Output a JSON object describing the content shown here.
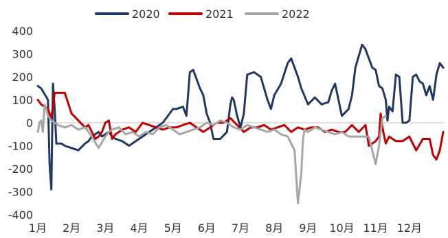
{
  "chart_data": {
    "type": "line",
    "title": "",
    "xlabel": "",
    "ylabel": "",
    "ylim": [
      -400,
      400
    ],
    "yticks": [
      400,
      300,
      200,
      100,
      0,
      -100,
      -200,
      -300,
      -400
    ],
    "xticks": [
      "1月",
      "2月",
      "3月",
      "4月",
      "5月",
      "6月",
      "7月",
      "8月",
      "9月",
      "10月",
      "11月",
      "12月"
    ],
    "xlim": [
      0,
      12
    ],
    "grid": false,
    "legend_position": "top",
    "series": [
      {
        "name": "2020",
        "color": "#1F3864",
        "x": [
          0.0,
          0.1,
          0.3,
          0.35,
          0.4,
          0.45,
          0.5,
          0.55,
          0.6,
          0.65,
          0.7,
          0.8,
          1.0,
          1.2,
          1.4,
          1.5,
          1.6,
          1.8,
          1.9,
          2.1,
          2.2,
          2.3,
          2.5,
          2.7,
          2.9,
          3.1,
          3.3,
          3.5,
          3.7,
          3.9,
          4.0,
          4.1,
          4.3,
          4.4,
          4.5,
          4.6,
          4.8,
          4.9,
          5.0,
          5.1,
          5.2,
          5.4,
          5.6,
          5.7,
          5.75,
          5.8,
          5.9,
          6.0,
          6.1,
          6.2,
          6.4,
          6.6,
          6.8,
          6.9,
          7.0,
          7.2,
          7.4,
          7.5,
          7.7,
          7.8,
          8.0,
          8.2,
          8.4,
          8.6,
          8.7,
          8.8,
          9.0,
          9.2,
          9.3,
          9.4,
          9.5,
          9.6,
          9.7,
          9.8,
          9.9,
          10.0,
          10.1,
          10.2,
          10.3,
          10.35,
          10.4,
          10.5,
          10.6,
          10.7,
          10.8,
          10.9,
          11.0,
          11.1,
          11.2,
          11.3,
          11.4,
          11.5,
          11.6,
          11.7,
          11.8,
          11.9,
          12.0
        ],
        "y": [
          160,
          150,
          100,
          -180,
          -290,
          170,
          60,
          -90,
          -90,
          -90,
          -90,
          -100,
          -110,
          -120,
          -90,
          -80,
          -60,
          -40,
          -60,
          -40,
          -60,
          -70,
          -80,
          -100,
          -80,
          -60,
          -40,
          -20,
          0,
          40,
          60,
          60,
          70,
          30,
          220,
          230,
          150,
          120,
          40,
          0,
          -70,
          -70,
          -40,
          80,
          110,
          100,
          30,
          -20,
          40,
          210,
          220,
          200,
          100,
          60,
          120,
          170,
          260,
          280,
          200,
          150,
          80,
          110,
          80,
          90,
          140,
          170,
          30,
          60,
          120,
          240,
          290,
          340,
          320,
          280,
          240,
          230,
          160,
          150,
          100,
          10,
          70,
          50,
          210,
          200,
          0,
          0,
          10,
          200,
          210,
          180,
          170,
          120,
          160,
          100,
          210,
          260,
          240
        ]
      },
      {
        "name": "2021",
        "color": "#C00000",
        "x": [
          0.0,
          0.1,
          0.2,
          0.3,
          0.4,
          0.5,
          0.6,
          0.7,
          0.8,
          1.0,
          1.2,
          1.4,
          1.5,
          1.6,
          1.7,
          1.8,
          1.9,
          2.0,
          2.1,
          2.2,
          2.3,
          2.5,
          2.7,
          2.9,
          3.1,
          3.3,
          3.5,
          3.7,
          3.9,
          4.1,
          4.3,
          4.5,
          4.7,
          4.9,
          5.1,
          5.3,
          5.5,
          5.7,
          5.9,
          6.1,
          6.3,
          6.5,
          6.7,
          6.9,
          7.1,
          7.3,
          7.5,
          7.7,
          7.9,
          8.1,
          8.3,
          8.5,
          8.7,
          8.9,
          9.1,
          9.3,
          9.5,
          9.7,
          9.8,
          9.9,
          10.0,
          10.1,
          10.15,
          10.2,
          10.3,
          10.4,
          10.6,
          10.8,
          11.0,
          11.2,
          11.4,
          11.6,
          11.7,
          11.8,
          11.9,
          12.0
        ],
        "y": [
          100,
          80,
          70,
          60,
          20,
          130,
          130,
          130,
          130,
          40,
          10,
          -20,
          -10,
          -40,
          -70,
          -60,
          -40,
          0,
          10,
          -70,
          -50,
          -30,
          -20,
          -40,
          0,
          -10,
          -20,
          -30,
          -20,
          -20,
          -10,
          0,
          -20,
          -40,
          -20,
          0,
          0,
          20,
          -10,
          -40,
          -20,
          -20,
          -10,
          -30,
          -20,
          -10,
          -40,
          -20,
          -30,
          -20,
          -20,
          -40,
          -30,
          -40,
          -40,
          -10,
          -40,
          -10,
          -100,
          -90,
          -80,
          -60,
          40,
          -20,
          -90,
          -60,
          -80,
          -80,
          -60,
          -120,
          -70,
          -70,
          -140,
          -160,
          -120,
          -40
        ]
      },
      {
        "name": "2022",
        "color": "#A6A6A6",
        "x": [
          0.0,
          0.05,
          0.1,
          0.15,
          0.2,
          0.25,
          0.3,
          0.35,
          0.4,
          0.5,
          0.6,
          0.8,
          1.0,
          1.2,
          1.4,
          1.6,
          1.8,
          2.0,
          2.1,
          2.2,
          2.4,
          2.6,
          2.8,
          3.0,
          3.2,
          3.4,
          3.6,
          3.8,
          4.0,
          4.2,
          4.4,
          4.6,
          4.8,
          5.0,
          5.2,
          5.4,
          5.6,
          5.8,
          6.0,
          6.2,
          6.4,
          6.6,
          6.8,
          7.0,
          7.2,
          7.4,
          7.6,
          7.7,
          7.8,
          7.85,
          7.9,
          8.0,
          8.2,
          8.4,
          8.6,
          8.8,
          9.0,
          9.2,
          9.4,
          9.6,
          9.8,
          10.0,
          10.1,
          10.2,
          10.3
        ],
        "y": [
          -40,
          0,
          10,
          -40,
          80,
          60,
          30,
          20,
          10,
          0,
          -10,
          -20,
          -10,
          -30,
          -20,
          -60,
          -110,
          -60,
          -40,
          -30,
          -20,
          -50,
          -40,
          -60,
          -40,
          -50,
          -20,
          -10,
          -30,
          -50,
          -40,
          -30,
          -20,
          0,
          -10,
          10,
          0,
          -20,
          -30,
          -10,
          -20,
          -30,
          -40,
          -30,
          -50,
          -60,
          -120,
          -350,
          -220,
          -70,
          -30,
          -40,
          -20,
          -30,
          -40,
          -50,
          -40,
          -60,
          -60,
          -60,
          -60,
          -180,
          -100,
          20,
          30
        ]
      }
    ]
  }
}
